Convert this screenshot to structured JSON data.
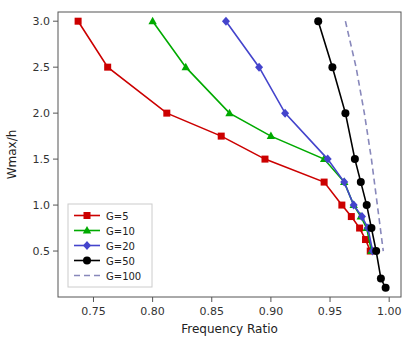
{
  "chart_data": {
    "type": "line",
    "xlabel": "Frequency Ratio",
    "ylabel": "Wmax/h",
    "xlim": [
      0.72,
      1.01
    ],
    "ylim": [
      0.0,
      3.1
    ],
    "xticks": [
      0.75,
      {
        "value": 0.8,
        "label": "0.80"
      },
      0.85,
      {
        "value": 0.9,
        "label": "0.90"
      },
      0.95,
      {
        "value": 1.0,
        "label": "1.00"
      }
    ],
    "yticks": [
      0.5,
      {
        "value": 1.0,
        "label": "1.0"
      },
      1.5,
      {
        "value": 2.0,
        "label": "2.0"
      },
      2.5,
      {
        "value": 3.0,
        "label": "3.0"
      }
    ],
    "grid": false,
    "legend": "lower left",
    "series": [
      {
        "name": "G=5",
        "color": "#cc0000",
        "line_style": "solid",
        "marker": "square",
        "x": [
          0.737,
          0.762,
          0.812,
          0.858,
          0.895,
          0.945,
          0.96,
          0.968,
          0.975,
          0.98,
          0.984
        ],
        "values": [
          3.0,
          2.5,
          2.0,
          1.75,
          1.5,
          1.25,
          1.0,
          0.875,
          0.75,
          0.625,
          0.5
        ]
      },
      {
        "name": "G=10",
        "color": "#00aa00",
        "line_style": "solid",
        "marker": "triangle",
        "x": [
          0.8,
          0.828,
          0.865,
          0.9,
          0.945,
          0.962,
          0.97,
          0.976,
          0.981,
          0.985
        ],
        "values": [
          3.0,
          2.5,
          2.0,
          1.75,
          1.5,
          1.25,
          1.0,
          0.875,
          0.75,
          0.5
        ]
      },
      {
        "name": "G=20",
        "color": "#4444cc",
        "line_style": "solid",
        "marker": "diamond",
        "x": [
          0.862,
          0.89,
          0.912,
          0.948,
          0.962,
          0.97,
          0.977,
          0.982,
          0.986
        ],
        "values": [
          3.0,
          2.5,
          2.0,
          1.5,
          1.25,
          1.0,
          0.875,
          0.75,
          0.5
        ]
      },
      {
        "name": "G=50",
        "color": "#000000",
        "line_style": "solid",
        "marker": "circle",
        "x": [
          0.94,
          0.952,
          0.963,
          0.971,
          0.976,
          0.981,
          0.985,
          0.989,
          0.993,
          0.997
        ],
        "values": [
          3.0,
          2.5,
          2.0,
          1.5,
          1.25,
          1.0,
          0.75,
          0.5,
          0.2,
          0.1
        ]
      },
      {
        "name": "G=100",
        "color": "#8888bb",
        "line_style": "dashed",
        "marker": "none",
        "x": [
          0.963,
          0.972,
          0.979,
          0.985,
          0.99,
          0.995
        ],
        "values": [
          3.0,
          2.5,
          2.0,
          1.5,
          1.0,
          0.5
        ]
      }
    ]
  }
}
